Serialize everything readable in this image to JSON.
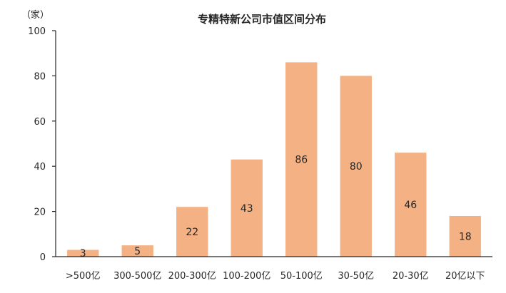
{
  "chart_data": {
    "type": "bar",
    "title": "专精特新公司市值区间分布",
    "unit_label": "（家）",
    "xlabel": "",
    "ylabel": "",
    "categories": [
      ">500亿",
      "300-500亿",
      "200-300亿",
      "100-200亿",
      "50-100亿",
      "30-50亿",
      "20-30亿",
      "20亿以下"
    ],
    "values": [
      3,
      5,
      22,
      43,
      86,
      80,
      46,
      18
    ],
    "ylim": [
      0,
      100
    ],
    "yticks": [
      0,
      20,
      40,
      60,
      80,
      100
    ],
    "grid": false,
    "legend": "none",
    "bar_color": "#F4B183",
    "axis_color": "#262626"
  }
}
